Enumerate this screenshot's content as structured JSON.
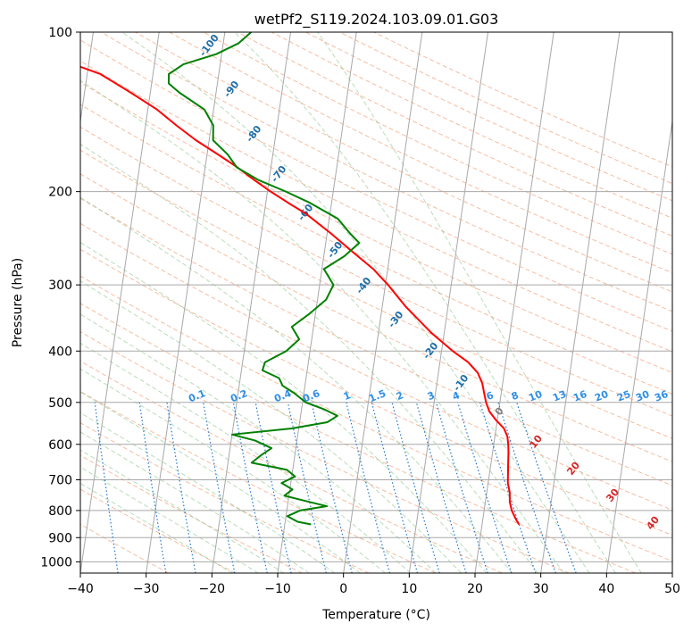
{
  "chart_data": {
    "type": "line",
    "diagram": "skew-t log-p",
    "title": "wetPf2_S119.2024.103.09.01.G03",
    "xlabel": "Temperature (°C)",
    "ylabel": "Pressure (hPa)",
    "xlim": [
      -40,
      50
    ],
    "ylim": [
      1050,
      100
    ],
    "y_scale": "log",
    "grid": true,
    "x_ticks": [
      -40,
      -30,
      -20,
      -10,
      0,
      10,
      20,
      30,
      40,
      50
    ],
    "y_ticks": [
      100,
      200,
      300,
      400,
      500,
      600,
      700,
      800,
      900,
      1000
    ],
    "series": [
      {
        "role": "temperature",
        "color": "#ff0000",
        "points": [
          {
            "p": 850,
            "t": 25.6
          },
          {
            "p": 830,
            "t": 25.0
          },
          {
            "p": 800,
            "t": 24.2
          },
          {
            "p": 770,
            "t": 23.7
          },
          {
            "p": 740,
            "t": 23.5
          },
          {
            "p": 710,
            "t": 23.0
          },
          {
            "p": 680,
            "t": 22.8
          },
          {
            "p": 650,
            "t": 22.6
          },
          {
            "p": 620,
            "t": 22.4
          },
          {
            "p": 600,
            "t": 22.2
          },
          {
            "p": 580,
            "t": 21.9
          },
          {
            "p": 560,
            "t": 21.2
          },
          {
            "p": 540,
            "t": 19.8
          },
          {
            "p": 520,
            "t": 18.6
          },
          {
            "p": 500,
            "t": 17.9
          },
          {
            "p": 480,
            "t": 17.4
          },
          {
            "p": 460,
            "t": 16.9
          },
          {
            "p": 440,
            "t": 16.0
          },
          {
            "p": 420,
            "t": 14.3
          },
          {
            "p": 400,
            "t": 11.7
          },
          {
            "p": 370,
            "t": 8.1
          },
          {
            "p": 350,
            "t": 5.9
          },
          {
            "p": 330,
            "t": 3.6
          },
          {
            "p": 300,
            "t": 0.4
          },
          {
            "p": 280,
            "t": -2.2
          },
          {
            "p": 260,
            "t": -5.7
          },
          {
            "p": 240,
            "t": -9.4
          },
          {
            "p": 220,
            "t": -13.7
          },
          {
            "p": 210,
            "t": -16.6
          },
          {
            "p": 200,
            "t": -19.5
          },
          {
            "p": 190,
            "t": -22.3
          },
          {
            "p": 180,
            "t": -25.1
          },
          {
            "p": 170,
            "t": -28.4
          },
          {
            "p": 160,
            "t": -32.0
          },
          {
            "p": 150,
            "t": -35.3
          },
          {
            "p": 140,
            "t": -38.6
          },
          {
            "p": 130,
            "t": -43.0
          },
          {
            "p": 120,
            "t": -48.0
          },
          {
            "p": 115,
            "t": -52.3
          },
          {
            "p": 110,
            "t": -56.0
          },
          {
            "p": 105,
            "t": -57.5
          },
          {
            "p": 100,
            "t": -59.0
          }
        ]
      },
      {
        "role": "dewpoint",
        "color": "#008000",
        "points": [
          {
            "p": 850,
            "t": -6.0
          },
          {
            "p": 840,
            "t": -8.1
          },
          {
            "p": 820,
            "t": -9.8
          },
          {
            "p": 800,
            "t": -8.0
          },
          {
            "p": 785,
            "t": -4.0
          },
          {
            "p": 770,
            "t": -6.9
          },
          {
            "p": 750,
            "t": -10.7
          },
          {
            "p": 730,
            "t": -9.6
          },
          {
            "p": 710,
            "t": -11.4
          },
          {
            "p": 690,
            "t": -9.5
          },
          {
            "p": 670,
            "t": -10.9
          },
          {
            "p": 650,
            "t": -16.4
          },
          {
            "p": 630,
            "t": -15.2
          },
          {
            "p": 610,
            "t": -13.7
          },
          {
            "p": 590,
            "t": -16.4
          },
          {
            "p": 575,
            "t": -20.0
          },
          {
            "p": 560,
            "t": -11.1
          },
          {
            "p": 545,
            "t": -5.8
          },
          {
            "p": 530,
            "t": -4.4
          },
          {
            "p": 515,
            "t": -6.6
          },
          {
            "p": 500,
            "t": -9.5
          },
          {
            "p": 480,
            "t": -11.5
          },
          {
            "p": 465,
            "t": -13.4
          },
          {
            "p": 450,
            "t": -14.1
          },
          {
            "p": 435,
            "t": -16.8
          },
          {
            "p": 420,
            "t": -16.6
          },
          {
            "p": 400,
            "t": -13.6
          },
          {
            "p": 380,
            "t": -11.9
          },
          {
            "p": 360,
            "t": -13.3
          },
          {
            "p": 340,
            "t": -10.9
          },
          {
            "p": 320,
            "t": -8.7
          },
          {
            "p": 300,
            "t": -7.9
          },
          {
            "p": 280,
            "t": -9.7
          },
          {
            "p": 265,
            "t": -6.9
          },
          {
            "p": 250,
            "t": -4.9
          },
          {
            "p": 240,
            "t": -6.5
          },
          {
            "p": 225,
            "t": -8.7
          },
          {
            "p": 210,
            "t": -13.3
          },
          {
            "p": 200,
            "t": -17.2
          },
          {
            "p": 190,
            "t": -21.7
          },
          {
            "p": 180,
            "t": -25.2
          },
          {
            "p": 170,
            "t": -26.9
          },
          {
            "p": 160,
            "t": -29.4
          },
          {
            "p": 150,
            "t": -29.7
          },
          {
            "p": 140,
            "t": -31.4
          },
          {
            "p": 130,
            "t": -35.6
          },
          {
            "p": 125,
            "t": -37.4
          },
          {
            "p": 120,
            "t": -37.6
          },
          {
            "p": 115,
            "t": -35.6
          },
          {
            "p": 110,
            "t": -30.8
          },
          {
            "p": 105,
            "t": -27.7
          },
          {
            "p": 100,
            "t": -26.0
          }
        ]
      }
    ],
    "background": {
      "isotherm_spacing": 10,
      "dry_adiabat_labels": [
        -100,
        -90,
        -80,
        -70,
        -60,
        -50,
        -40,
        -30,
        -20,
        -10,
        0,
        10,
        20,
        30,
        40
      ],
      "moist_adiabat_labels": [
        10,
        20,
        30,
        40
      ],
      "mixing_ratio_labels": [
        "0.1",
        "0.2",
        "0.4",
        "0.6",
        "1",
        "1.5",
        "2",
        "3",
        "4",
        "6",
        "8",
        "10",
        "13",
        "16",
        "20",
        "25",
        "30",
        "36"
      ],
      "zero_isotherm_label": "0"
    },
    "colors": {
      "temperature": "#ff0000",
      "dewpoint": "#008000",
      "isotherms": "#a8a8a8",
      "dry_adiabats": "#f4a582",
      "moist_adiabats": "#8ac48a",
      "mixing_ratio": "#1f77d4",
      "dry_labels": "#1f6fa8",
      "mixing_labels": "#2f8fe6",
      "moist_labels": "#d62728"
    }
  }
}
